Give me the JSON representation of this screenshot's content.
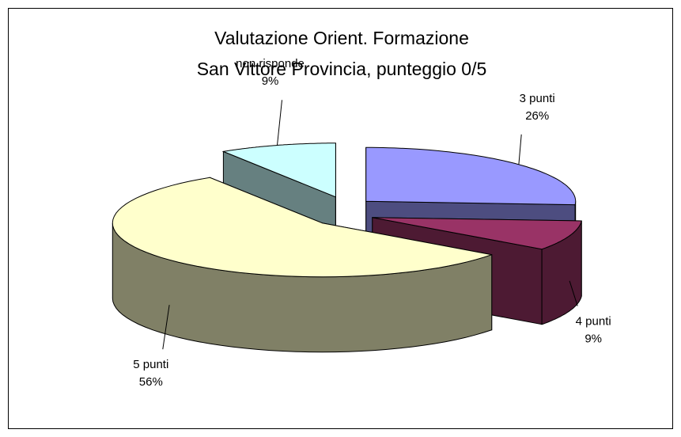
{
  "chart_data": {
    "type": "pie3d",
    "title": [
      "Valutazione Orient. Formazione",
      "San Vittore Provincia, punteggio  0/5"
    ],
    "categories": [
      "3 punti",
      "4 punti",
      "5 punti",
      "non risponde"
    ],
    "values": [
      26,
      9,
      56,
      9
    ],
    "value_labels": [
      "26%",
      "9%",
      "56%",
      "9%"
    ],
    "colors": [
      "#9999ff",
      "#993366",
      "#ffffcc",
      "#ccffff"
    ]
  }
}
